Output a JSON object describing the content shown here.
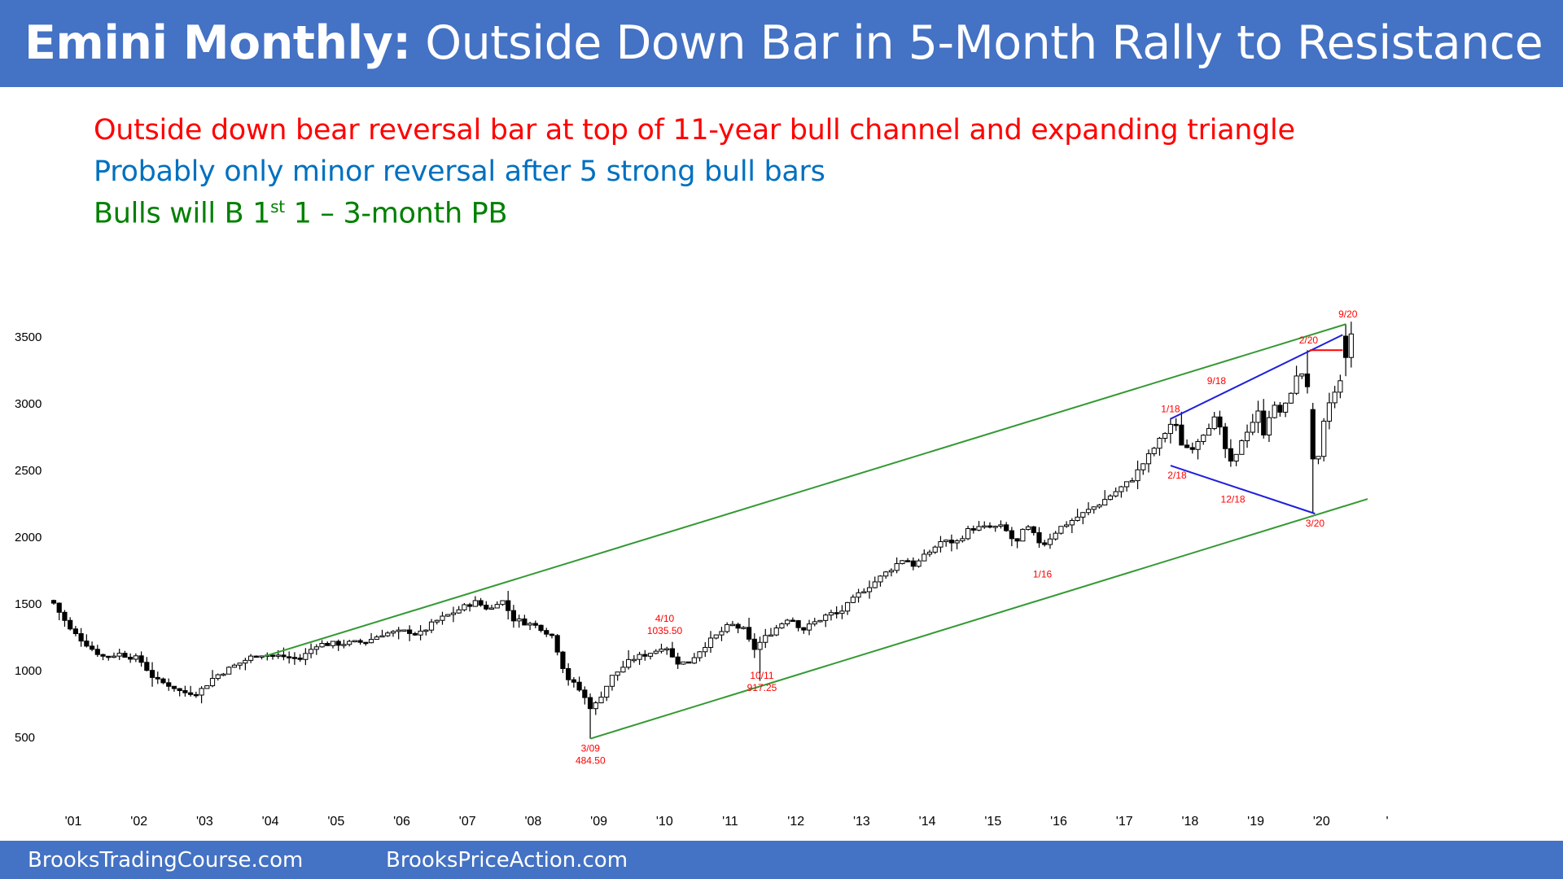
{
  "header": {
    "title_bold": "Emini Monthly:",
    "title_rest": " Outside Down Bar in 5-Month Rally to Resistance"
  },
  "notes": {
    "line1": "Outside down bear reversal bar at top of 11-year bull channel and expanding triangle",
    "line2": "Probably only minor reversal after 5 strong bull bars",
    "line3_a": "Bulls will B 1",
    "line3_sup": "st",
    "line3_b": " 1 – 3-month PB"
  },
  "footer": {
    "left": "BrooksTradingCourse.com",
    "right": "BrooksPriceAction.com"
  },
  "colors": {
    "header": "#4472c4",
    "red": "#ff0000",
    "blue": "#0070c0",
    "green": "#008000",
    "line_green": "#339933",
    "line_blue": "#1f1fdc"
  },
  "chart_data": {
    "type": "candlestick",
    "title": "Emini Monthly",
    "y_ticks": [
      3500,
      3000,
      2500,
      2000,
      1500,
      1000,
      500
    ],
    "ylim": [
      0,
      3700
    ],
    "x_ticks": [
      "'01",
      "'02",
      "'03",
      "'04",
      "'05",
      "'06",
      "'07",
      "'08",
      "'09",
      "'10",
      "'11",
      "'12",
      "'13",
      "'14",
      "'15",
      "'16",
      "'17",
      "'18",
      "'19",
      "'20",
      "'"
    ],
    "xlim": [
      2001.0,
      2021.5
    ],
    "anchors": [
      [
        2001.0,
        1500
      ],
      [
        2001.25,
        1300
      ],
      [
        2001.6,
        1150
      ],
      [
        2001.75,
        1100
      ],
      [
        2002.0,
        1120
      ],
      [
        2002.3,
        1080
      ],
      [
        2002.55,
        920
      ],
      [
        2002.8,
        880
      ],
      [
        2002.95,
        830
      ],
      [
        2003.2,
        830
      ],
      [
        2003.45,
        950
      ],
      [
        2003.75,
        1030
      ],
      [
        2004.1,
        1120
      ],
      [
        2004.5,
        1100
      ],
      [
        2004.75,
        1080
      ],
      [
        2005.0,
        1190
      ],
      [
        2005.5,
        1200
      ],
      [
        2005.75,
        1210
      ],
      [
        2006.0,
        1270
      ],
      [
        2006.4,
        1290
      ],
      [
        2006.55,
        1260
      ],
      [
        2006.8,
        1360
      ],
      [
        2007.4,
        1510
      ],
      [
        2007.65,
        1450
      ],
      [
        2007.8,
        1540
      ],
      [
        2008.0,
        1380
      ],
      [
        2008.4,
        1320
      ],
      [
        2008.6,
        1250
      ],
      [
        2008.8,
        950
      ],
      [
        2009.0,
        850
      ],
      [
        2009.2,
        700
      ],
      [
        2009.5,
        950
      ],
      [
        2009.8,
        1080
      ],
      [
        2010.2,
        1150
      ],
      [
        2010.3,
        1200
      ],
      [
        2010.45,
        1060
      ],
      [
        2010.65,
        1050
      ],
      [
        2010.9,
        1180
      ],
      [
        2011.3,
        1340
      ],
      [
        2011.5,
        1300
      ],
      [
        2011.65,
        1150
      ],
      [
        2011.8,
        1230
      ],
      [
        2012.2,
        1400
      ],
      [
        2012.4,
        1300
      ],
      [
        2012.8,
        1420
      ],
      [
        2012.95,
        1420
      ],
      [
        2013.3,
        1590
      ],
      [
        2013.5,
        1660
      ],
      [
        2013.95,
        1840
      ],
      [
        2014.1,
        1780
      ],
      [
        2014.5,
        1960
      ],
      [
        2014.75,
        1960
      ],
      [
        2014.95,
        2060
      ],
      [
        2015.45,
        2070
      ],
      [
        2015.65,
        1940
      ],
      [
        2015.8,
        2080
      ],
      [
        2016.05,
        1930
      ],
      [
        2016.3,
        2060
      ],
      [
        2016.9,
        2240
      ],
      [
        2017.4,
        2420
      ],
      [
        2017.95,
        2800
      ],
      [
        2018.05,
        2880
      ],
      [
        2018.15,
        2700
      ],
      [
        2018.3,
        2650
      ],
      [
        2018.7,
        2900
      ],
      [
        2018.8,
        2700
      ],
      [
        2018.95,
        2500
      ],
      [
        2019.05,
        2700
      ],
      [
        2019.35,
        2940
      ],
      [
        2019.4,
        2750
      ],
      [
        2019.55,
        2980
      ],
      [
        2019.7,
        2920
      ],
      [
        2019.95,
        3230
      ],
      [
        2020.05,
        3220
      ],
      [
        2020.15,
        2950
      ],
      [
        2020.25,
        2580
      ],
      [
        2020.35,
        2900
      ],
      [
        2020.45,
        3050
      ],
      [
        2020.55,
        3100
      ],
      [
        2020.65,
        3270
      ],
      [
        2020.75,
        3500
      ],
      [
        2020.85,
        3360
      ]
    ],
    "annotations": [
      {
        "text": "3/09",
        "date": 2009.17,
        "price": 484.5,
        "pos": "below"
      },
      {
        "text": "484.50",
        "date": 2009.17,
        "price": 484.5,
        "pos": "below2"
      },
      {
        "text": "4/10",
        "date": 2010.3,
        "price": 1390,
        "pos": "center"
      },
      {
        "text": "1035.50",
        "date": 2010.3,
        "price": 1300,
        "pos": "center"
      },
      {
        "text": "10/11",
        "date": 2011.78,
        "price": 1030,
        "pos": "below"
      },
      {
        "text": "917.25",
        "date": 2011.78,
        "price": 1030,
        "pos": "below2"
      },
      {
        "text": "1/16",
        "date": 2016.05,
        "price": 1790,
        "pos": "below"
      },
      {
        "text": "1/18",
        "date": 2018.0,
        "price": 2880,
        "pos": "above"
      },
      {
        "text": "2/18",
        "date": 2018.1,
        "price": 2530,
        "pos": "below"
      },
      {
        "text": "9/18",
        "date": 2018.7,
        "price": 3170,
        "pos": "center"
      },
      {
        "text": "12/18",
        "date": 2018.95,
        "price": 2350,
        "pos": "below"
      },
      {
        "text": "2/20",
        "date": 2020.1,
        "price": 3395,
        "pos": "above"
      },
      {
        "text": "3/20",
        "date": 2020.2,
        "price": 2170,
        "pos": "below"
      },
      {
        "text": "9/20",
        "date": 2020.7,
        "price": 3590,
        "pos": "above"
      }
    ],
    "lines": [
      {
        "name": "channel-top",
        "color": "#339933",
        "points": [
          [
            2004.2,
            1100
          ],
          [
            2020.67,
            3590
          ]
        ]
      },
      {
        "name": "channel-bottom",
        "color": "#339933",
        "points": [
          [
            2009.17,
            484.5
          ],
          [
            2021.0,
            2280
          ]
        ]
      },
      {
        "name": "triangle-top",
        "color": "#1f1fdc",
        "points": [
          [
            2018.0,
            2880
          ],
          [
            2020.62,
            3510
          ]
        ]
      },
      {
        "name": "triangle-bottom",
        "color": "#1f1fdc",
        "points": [
          [
            2018.0,
            2530
          ],
          [
            2020.2,
            2170
          ]
        ]
      },
      {
        "name": "resistance-2-20",
        "color": "#ff0000",
        "points": [
          [
            2020.12,
            3395
          ],
          [
            2020.62,
            3395
          ]
        ]
      }
    ]
  }
}
